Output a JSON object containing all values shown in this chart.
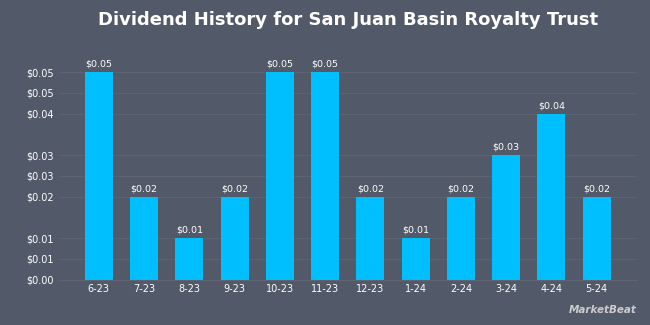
{
  "title": "Dividend History for San Juan Basin Royalty Trust",
  "categories": [
    "6-23",
    "7-23",
    "8-23",
    "9-23",
    "10-23",
    "11-23",
    "12-23",
    "1-24",
    "2-24",
    "3-24",
    "4-24",
    "5-24"
  ],
  "values": [
    0.05,
    0.02,
    0.01,
    0.02,
    0.05,
    0.05,
    0.02,
    0.01,
    0.02,
    0.03,
    0.04,
    0.02
  ],
  "bar_color": "#00bfff",
  "background_color": "#525968",
  "grid_color": "#606472",
  "text_color": "#ffffff",
  "title_fontsize": 13,
  "tick_fontsize": 7,
  "bar_label_fontsize": 6.8,
  "ytick_positions": [
    0.0,
    0.005,
    0.01,
    0.02,
    0.025,
    0.03,
    0.04,
    0.045,
    0.05
  ],
  "ytick_labels": [
    "$0.00",
    "$0.01",
    "$0.01",
    "$0.02",
    "$0.03",
    "$0.03",
    "$0.04",
    "$0.05",
    "$0.05"
  ],
  "ylim": [
    0,
    0.058
  ],
  "bar_width": 0.62
}
